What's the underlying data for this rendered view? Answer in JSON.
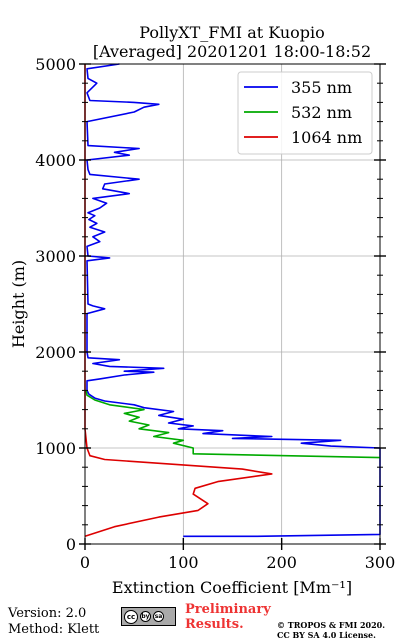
{
  "chart_data": {
    "type": "line",
    "title": [
      "PollyXT_FMI at Kuopio",
      "[Averaged] 20201201 18:00-18:52"
    ],
    "xlabel": "Extinction Coefficient [Mm⁻¹]",
    "ylabel": "Height (m)",
    "xlim": [
      0,
      300
    ],
    "ylim": [
      0,
      5000
    ],
    "xticks": [
      0,
      100,
      200,
      300
    ],
    "yticks": [
      0,
      1000,
      2000,
      3000,
      4000,
      5000
    ],
    "grid": true,
    "legend_position": "top-right",
    "series": [
      {
        "name": "355 nm",
        "color": "#0000ee",
        "points": [
          [
            100,
            80
          ],
          [
            175,
            80
          ],
          [
            300,
            100
          ],
          [
            300,
            1000
          ],
          [
            250,
            1020
          ],
          [
            220,
            1050
          ],
          [
            260,
            1080
          ],
          [
            150,
            1100
          ],
          [
            190,
            1120
          ],
          [
            120,
            1150
          ],
          [
            140,
            1180
          ],
          [
            95,
            1200
          ],
          [
            110,
            1230
          ],
          [
            85,
            1260
          ],
          [
            100,
            1300
          ],
          [
            75,
            1340
          ],
          [
            90,
            1380
          ],
          [
            60,
            1420
          ],
          [
            50,
            1450
          ],
          [
            20,
            1490
          ],
          [
            10,
            1520
          ],
          [
            4,
            1560
          ],
          [
            2,
            1600
          ],
          [
            2,
            1700
          ],
          [
            15,
            1720
          ],
          [
            40,
            1760
          ],
          [
            70,
            1790
          ],
          [
            40,
            1800
          ],
          [
            80,
            1830
          ],
          [
            25,
            1850
          ],
          [
            8,
            1880
          ],
          [
            35,
            1920
          ],
          [
            3,
            1940
          ],
          [
            2,
            2000
          ],
          [
            2,
            2400
          ],
          [
            20,
            2450
          ],
          [
            8,
            2480
          ],
          [
            3,
            2500
          ],
          [
            2,
            2950
          ],
          [
            25,
            2980
          ],
          [
            3,
            3000
          ],
          [
            2,
            3100
          ],
          [
            15,
            3150
          ],
          [
            8,
            3200
          ],
          [
            20,
            3250
          ],
          [
            5,
            3300
          ],
          [
            12,
            3340
          ],
          [
            4,
            3380
          ],
          [
            10,
            3420
          ],
          [
            3,
            3450
          ],
          [
            15,
            3500
          ],
          [
            22,
            3550
          ],
          [
            8,
            3600
          ],
          [
            45,
            3650
          ],
          [
            18,
            3700
          ],
          [
            20,
            3750
          ],
          [
            55,
            3800
          ],
          [
            5,
            3850
          ],
          [
            3,
            3900
          ],
          [
            2,
            4000
          ],
          [
            45,
            4050
          ],
          [
            30,
            4080
          ],
          [
            55,
            4120
          ],
          [
            3,
            4150
          ],
          [
            2,
            4400
          ],
          [
            50,
            4500
          ],
          [
            60,
            4550
          ],
          [
            75,
            4580
          ],
          [
            50,
            4600
          ],
          [
            5,
            4620
          ],
          [
            2,
            4700
          ],
          [
            12,
            4800
          ],
          [
            3,
            4850
          ],
          [
            2,
            4950
          ],
          [
            35,
            5000
          ]
        ]
      },
      {
        "name": "532 nm",
        "color": "#00aa00",
        "points": [
          [
            300,
            900
          ],
          [
            110,
            940
          ],
          [
            110,
            1000
          ],
          [
            90,
            1050
          ],
          [
            100,
            1080
          ],
          [
            70,
            1120
          ],
          [
            85,
            1160
          ],
          [
            55,
            1200
          ],
          [
            65,
            1240
          ],
          [
            45,
            1280
          ],
          [
            55,
            1320
          ],
          [
            40,
            1360
          ],
          [
            60,
            1400
          ],
          [
            25,
            1450
          ],
          [
            10,
            1500
          ],
          [
            2,
            1550
          ],
          [
            1,
            1600
          ]
        ]
      },
      {
        "name": "1064 nm",
        "color": "#dd0000",
        "points": [
          [
            0,
            80
          ],
          [
            30,
            180
          ],
          [
            75,
            280
          ],
          [
            115,
            350
          ],
          [
            125,
            420
          ],
          [
            110,
            520
          ],
          [
            112,
            580
          ],
          [
            135,
            650
          ],
          [
            190,
            730
          ],
          [
            160,
            780
          ],
          [
            20,
            880
          ],
          [
            5,
            920
          ],
          [
            2,
            1000
          ],
          [
            0,
            1200
          ],
          [
            0,
            5000
          ]
        ]
      }
    ]
  },
  "footer": {
    "version": "Version: 2.0",
    "method": "Method: Klett",
    "preliminary": [
      "Preliminary",
      "Results."
    ],
    "copyright": [
      "© TROPOS & FMI 2020.",
      "CC BY SA 4.0 License."
    ],
    "license_badge": [
      "cc",
      "by",
      "sa"
    ]
  }
}
